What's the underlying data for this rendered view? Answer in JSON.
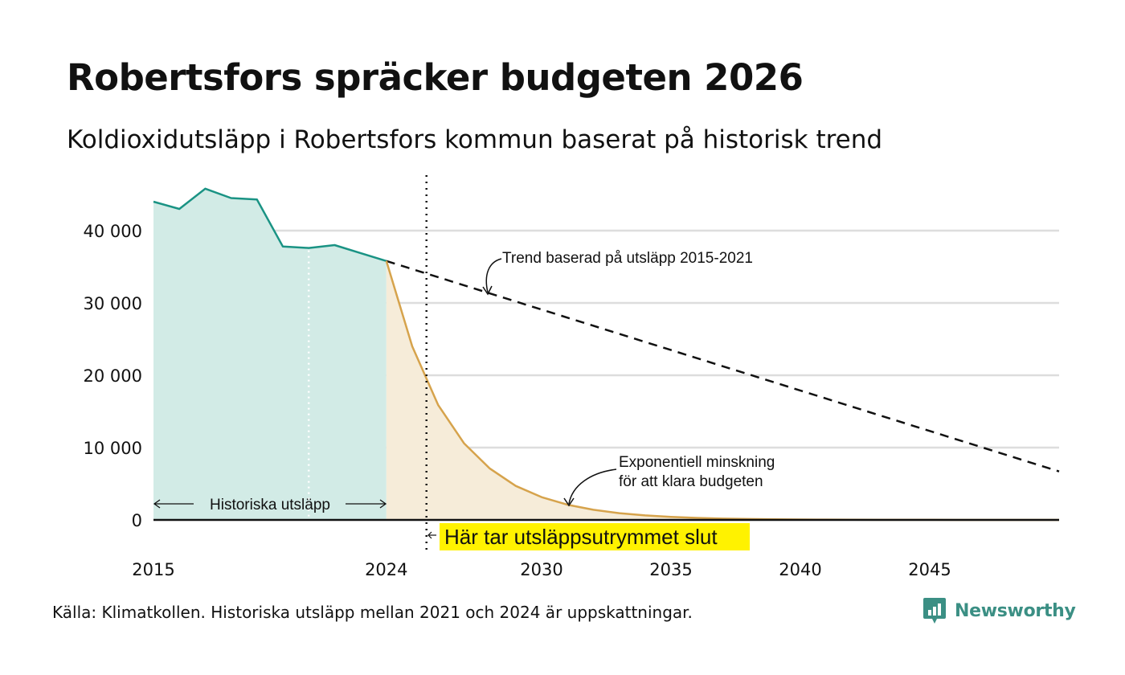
{
  "title": "Robertsfors spräcker budgeten 2026",
  "subtitle": "Koldioxidutsläpp i Robertsfors kommun baserat på historisk trend",
  "source": "Källa: Klimatkollen. Historiska utsläpp mellan 2021 och 2024 är uppskattningar.",
  "brand": "Newsworthy",
  "colors": {
    "historical": "#1a9384",
    "historical_fill": "#d2ebe6",
    "budget": "#d6a34c",
    "budget_fill": "#f6ecd9",
    "highlight": "#fff200",
    "grid": "#dddddd",
    "brand": "#3b8f84"
  },
  "chart_data": {
    "type": "line",
    "xlim": [
      2015,
      2050
    ],
    "ylim": [
      0,
      45000
    ],
    "yticks": [
      0,
      10000,
      20000,
      30000,
      40000
    ],
    "ytick_labels": [
      "0",
      "10 000",
      "20 000",
      "30 000",
      "40 000"
    ],
    "xticks": [
      2015,
      2024,
      2030,
      2035,
      2040,
      2045
    ],
    "xtick_labels": [
      "2015",
      "2024",
      "2030",
      "2035",
      "2040",
      "2045"
    ],
    "budget_end_year": 2025.55,
    "estimate_start_year": 2021,
    "series": [
      {
        "name": "Historiska utsläpp",
        "style": "solid-area",
        "x": [
          2015,
          2016,
          2017,
          2018,
          2019,
          2020,
          2021,
          2022,
          2023,
          2024
        ],
        "values": [
          44000,
          43000,
          45800,
          44500,
          44300,
          37800,
          37600,
          38000,
          36900,
          35800
        ]
      },
      {
        "name": "Trend baserad på utsläpp 2015-2021",
        "style": "dashed",
        "x": [
          2024,
          2050
        ],
        "values": [
          35800,
          6700
        ]
      },
      {
        "name": "Exponentiell minskning för att klara budgeten",
        "style": "solid-area",
        "x": [
          2024,
          2025,
          2026,
          2027,
          2028,
          2029,
          2030,
          2031,
          2032,
          2033,
          2034,
          2035,
          2036,
          2037,
          2038,
          2039,
          2040,
          2041,
          2042,
          2043,
          2044,
          2045,
          2046,
          2047,
          2048,
          2049,
          2050
        ],
        "values": [
          35800,
          24000,
          15900,
          10600,
          7100,
          4700,
          3150,
          2100,
          1400,
          930,
          620,
          410,
          275,
          180,
          120,
          80,
          55,
          36,
          24,
          16,
          11,
          7,
          5,
          3,
          2,
          1,
          1
        ]
      }
    ],
    "annotations": {
      "historical": "Historiska utsläpp",
      "trend": "Trend baserad på utsläpp 2015-2021",
      "exp_line1": "Exponentiell minskning",
      "exp_line2": "för att klara budgeten",
      "budget_end": "Här tar utsläppsutrymmet slut"
    }
  }
}
